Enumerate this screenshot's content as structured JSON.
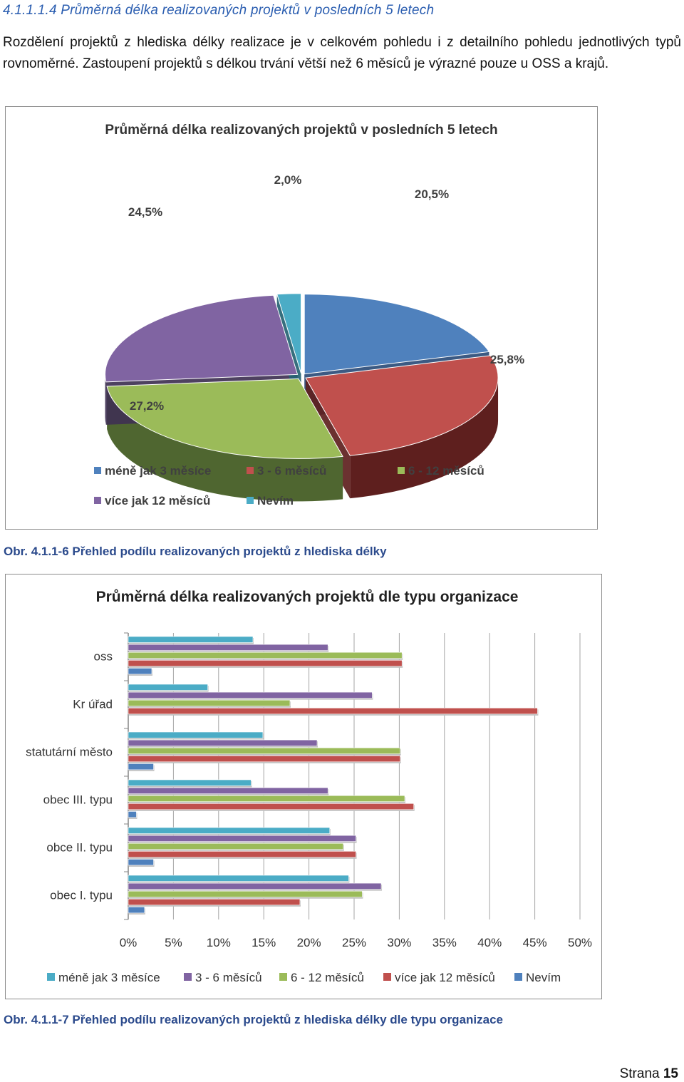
{
  "section": {
    "heading": "4.1.1.1.4  Průměrná délka realizovaných projektů v posledních 5 letech",
    "paragraph": "Rozdělení projektů z hlediska délky realizace je v celkovém pohledu i z detailního pohledu jednotlivých typů rovnoměrné. Zastoupení projektů s délkou trvání větší než 6 měsíců je výrazné pouze u OSS a krajů."
  },
  "captions": {
    "figure1": "Obr. 4.1.1-6 Přehled podílu realizovaných projektů z hlediska délky",
    "figure2": "Obr. 4.1.1-7 Přehled podílu realizovaných projektů z hlediska délky dle typu organizace"
  },
  "footer": {
    "page_label": "Strana",
    "page_number": "15"
  },
  "chart_data": [
    {
      "type": "pie",
      "title": "Průměrná délka realizovaných projektů v posledních 5 letech",
      "legend_position": "bottom",
      "slices": [
        {
          "label": "méně jak 3 měsíce",
          "value": 20.5,
          "value_label": "20,5%",
          "color": "#4f81bd",
          "dark": "#2b4c78"
        },
        {
          "label": "3 - 6 měsíců",
          "value": 25.8,
          "value_label": "25,8%",
          "color": "#c0504d",
          "dark": "#5e1f1e"
        },
        {
          "label": "6 - 12 měsíců",
          "value": 27.2,
          "value_label": "27,2%",
          "color": "#9bbb59",
          "dark": "#4f6630"
        },
        {
          "label": "více jak 12 měsíců",
          "value": 24.5,
          "value_label": "24,5%",
          "color": "#8064a2",
          "dark": "#3f3152"
        },
        {
          "label": "Nevím",
          "value": 2.0,
          "value_label": "2,0%",
          "color": "#4bacc6",
          "dark": "#256373"
        }
      ]
    },
    {
      "type": "bar",
      "orientation": "horizontal",
      "title": "Průměrná délka realizovaných projektů dle typu organizace",
      "legend_position": "bottom",
      "xlim": [
        0,
        50
      ],
      "x_ticks": [
        "0%",
        "5%",
        "10%",
        "15%",
        "20%",
        "25%",
        "30%",
        "35%",
        "40%",
        "45%",
        "50%"
      ],
      "categories": [
        "oss",
        "Kr úřad",
        "statutární město",
        "obec III. typu",
        "obce II. typu",
        "obec I. typu"
      ],
      "series": [
        {
          "name": "méně jak 3 měsíce",
          "color": "#4bacc6",
          "values": [
            13.8,
            8.8,
            14.9,
            13.6,
            22.3,
            24.4
          ]
        },
        {
          "name": "3 - 6 měsíců",
          "color": "#8064a2",
          "values": [
            22.1,
            27.0,
            20.9,
            22.1,
            25.2,
            28.0
          ]
        },
        {
          "name": "6 - 12 měsíců",
          "color": "#9bbb59",
          "values": [
            30.3,
            17.9,
            30.1,
            30.6,
            23.8,
            25.9
          ]
        },
        {
          "name": "více jak 12 měsíců",
          "color": "#c0504d",
          "values": [
            30.3,
            45.3,
            30.1,
            31.6,
            25.2,
            19.0
          ]
        },
        {
          "name": "Nevím",
          "color": "#4f81bd",
          "values": [
            2.6,
            0.0,
            2.8,
            0.9,
            2.8,
            1.8
          ]
        }
      ]
    }
  ]
}
